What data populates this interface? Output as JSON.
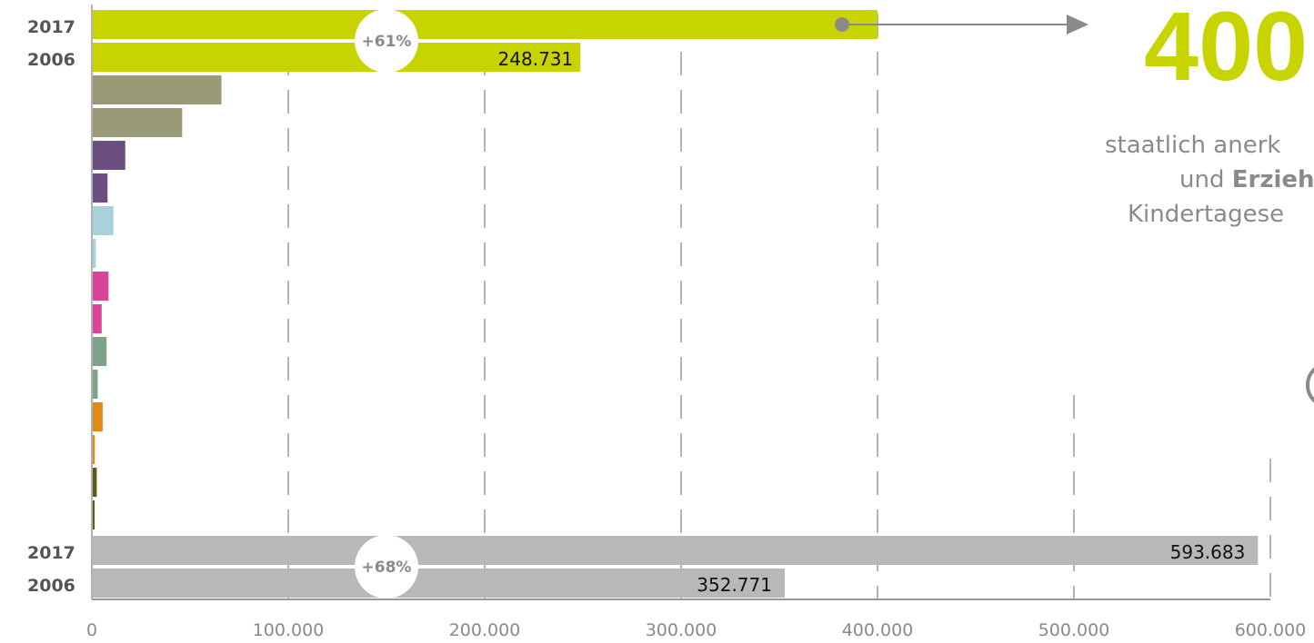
{
  "chart_data": {
    "type": "bar",
    "orientation": "horizontal",
    "xlim": [
      0,
      600000
    ],
    "x_tick_labels": [
      "0",
      "100.000",
      "200.000",
      "300.000",
      "400.000",
      "500.000",
      "600.000"
    ],
    "grid": "dashed vertical",
    "groups": [
      {
        "year_labels": [
          "2017",
          "2006"
        ],
        "values": [
          400000,
          248731
        ],
        "color": "#c8d400",
        "value_label": "248.731",
        "change_label": "+61%"
      },
      {
        "values": [
          66000,
          46000
        ],
        "color": "#9a9a76"
      },
      {
        "values": [
          17000,
          8000
        ],
        "color": "#6b4f80"
      },
      {
        "values": [
          11000,
          2000
        ],
        "color": "#a8d1da"
      },
      {
        "values": [
          8500,
          5000
        ],
        "color": "#d84496"
      },
      {
        "values": [
          7500,
          3000
        ],
        "color": "#7fa38a"
      },
      {
        "values": [
          5500,
          1500
        ],
        "color": "#e08a17"
      },
      {
        "values": [
          2500,
          1200
        ],
        "color": "#5c5a1a"
      },
      {
        "year_labels": [
          "2017",
          "2006"
        ],
        "values": [
          593683,
          352771
        ],
        "color": "#b8b8b8",
        "value_labels": [
          "593.683",
          "352.771"
        ],
        "change_label": "+68%"
      }
    ]
  },
  "callout": {
    "number": "400",
    "line1": "staatlich anerk",
    "line2_regular": "und ",
    "line2_bold": "Erzieh",
    "line3": "Kindertagese"
  }
}
